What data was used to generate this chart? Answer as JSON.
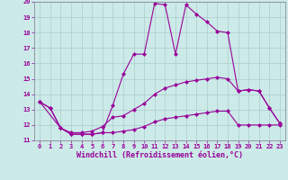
{
  "xlabel": "Windchill (Refroidissement éolien,°C)",
  "xlim": [
    -0.5,
    23.5
  ],
  "ylim": [
    11,
    20
  ],
  "xticks": [
    0,
    1,
    2,
    3,
    4,
    5,
    6,
    7,
    8,
    9,
    10,
    11,
    12,
    13,
    14,
    15,
    16,
    17,
    18,
    19,
    20,
    21,
    22,
    23
  ],
  "yticks": [
    11,
    12,
    13,
    14,
    15,
    16,
    17,
    18,
    19,
    20
  ],
  "background_color": "#cceae8",
  "grid_color": "#aacccc",
  "line_color": "#990099",
  "line1_x": [
    0,
    1,
    2,
    3,
    4,
    5,
    6,
    7,
    8,
    9,
    10,
    11,
    12,
    13,
    14,
    15,
    16,
    17,
    18,
    19,
    20,
    21,
    22,
    23
  ],
  "line1_y": [
    13.5,
    13.1,
    11.8,
    11.4,
    11.4,
    11.4,
    11.5,
    13.3,
    15.3,
    16.6,
    16.6,
    19.9,
    19.8,
    16.6,
    19.8,
    19.2,
    18.7,
    18.1,
    18.0,
    14.2,
    14.3,
    14.2,
    13.1,
    12.1
  ],
  "line2_x": [
    0,
    2,
    3,
    4,
    5,
    6,
    7,
    8,
    9,
    10,
    11,
    12,
    13,
    14,
    15,
    16,
    17,
    18,
    19,
    20,
    21,
    22,
    23
  ],
  "line2_y": [
    13.5,
    11.8,
    11.5,
    11.5,
    11.6,
    11.9,
    12.5,
    12.6,
    13.0,
    13.4,
    14.0,
    14.4,
    14.6,
    14.8,
    14.9,
    15.0,
    15.1,
    15.0,
    14.2,
    14.3,
    14.2,
    13.1,
    12.1
  ],
  "line3_x": [
    0,
    1,
    2,
    3,
    4,
    5,
    6,
    7,
    8,
    9,
    10,
    11,
    12,
    13,
    14,
    15,
    16,
    17,
    18,
    19,
    20,
    21,
    22,
    23
  ],
  "line3_y": [
    13.5,
    13.1,
    11.8,
    11.4,
    11.4,
    11.4,
    11.5,
    11.5,
    11.6,
    11.7,
    11.9,
    12.2,
    12.4,
    12.5,
    12.6,
    12.7,
    12.8,
    12.9,
    12.9,
    12.0,
    12.0,
    12.0,
    12.0,
    12.0
  ],
  "marker": "D",
  "markersize": 2,
  "linewidth": 0.8,
  "tick_fontsize": 5,
  "label_fontsize": 6
}
